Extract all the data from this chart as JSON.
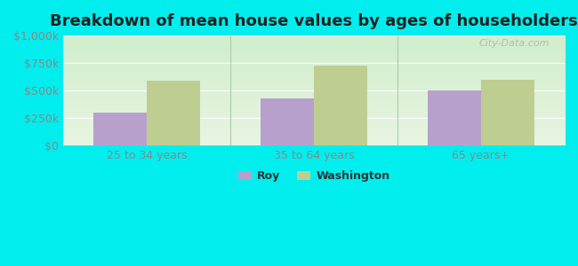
{
  "title": "Breakdown of mean house values by ages of householders",
  "categories": [
    "25 to 34 years",
    "35 to 64 years",
    "65 years+"
  ],
  "roy_values": [
    300000,
    430000,
    500000
  ],
  "washington_values": [
    590000,
    725000,
    600000
  ],
  "ylim": [
    0,
    1000000
  ],
  "yticks": [
    0,
    250000,
    500000,
    750000,
    1000000
  ],
  "ytick_labels": [
    "$0",
    "$250k",
    "$500k",
    "$750k",
    "$1,000k"
  ],
  "roy_color": "#b8a0cc",
  "washington_color": "#bece90",
  "background_color": "#00eeee",
  "plot_bg_top": "#e8f5e2",
  "plot_bg_bottom": "#d0eecc",
  "bar_width": 0.32,
  "legend_labels": [
    "Roy",
    "Washington"
  ],
  "watermark": "City-Data.com",
  "title_fontsize": 13,
  "tick_fontsize": 9,
  "legend_fontsize": 9,
  "grid_color": "#e8f0e0",
  "divider_color": "#aaccaa",
  "tick_color": "#888888"
}
